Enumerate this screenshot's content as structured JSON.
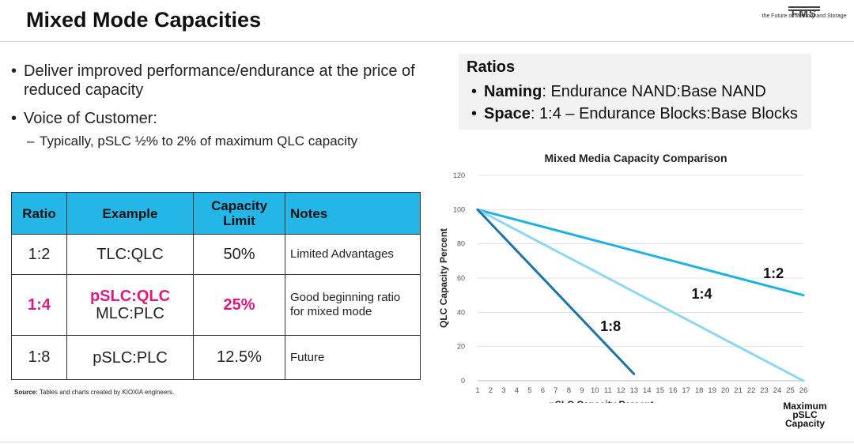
{
  "header": {
    "title": "Mixed Mode Capacities",
    "logo_mark": "FMS",
    "logo_tagline": "the Future of Memory and Storage"
  },
  "bullets": {
    "items": [
      "Deliver improved performance/endurance at the price of reduced capacity",
      "Voice of Customer:"
    ],
    "sub_items": [
      "Typically, pSLC ½% to 2% of maximum QLC capacity"
    ]
  },
  "ratios": {
    "title": "Ratios",
    "items": [
      {
        "term": "Naming",
        "text": ": Endurance NAND:Base NAND"
      },
      {
        "term": "Space",
        "text": ": 1:4 – Endurance Blocks:Base Blocks"
      }
    ]
  },
  "table": {
    "headers": [
      "Ratio",
      "Example",
      "Capacity Limit",
      "Notes"
    ],
    "rows": [
      {
        "ratio": "1:2",
        "example": [
          "TLC:QLC"
        ],
        "capacity": "50%",
        "notes": "Limited Advantages"
      },
      {
        "ratio": "1:4",
        "example": [
          "pSLC:QLC",
          "MLC:PLC"
        ],
        "capacity": "25%",
        "notes": "Good beginning ratio for mixed mode"
      },
      {
        "ratio": "1:8",
        "example": [
          "pSLC:PLC"
        ],
        "capacity": "12.5%",
        "notes": "Future"
      }
    ],
    "highlight_color": "#d81b7d",
    "header_color": "#25b6e8"
  },
  "source": {
    "label": "Source:",
    "text": " Tables and charts created by KIOXIA engineers."
  },
  "chart_data": {
    "type": "line",
    "title": "Mixed Media Capacity Comparison",
    "xlabel": "pSLC Capacity Percent",
    "ylabel": "QLC Capacity Percent",
    "x_ticks": [
      1,
      2,
      3,
      4,
      5,
      6,
      7,
      8,
      9,
      10,
      11,
      12,
      13,
      14,
      15,
      16,
      17,
      18,
      19,
      20,
      21,
      22,
      23,
      24,
      25,
      26
    ],
    "y_ticks": [
      0,
      20,
      40,
      60,
      80,
      100,
      120
    ],
    "xlim": [
      1,
      26
    ],
    "ylim": [
      0,
      120
    ],
    "grid": true,
    "extra_label": "Maximum pSLC Capacity",
    "series": [
      {
        "name": "1:2",
        "color": "#1fb1e3",
        "x": [
          1,
          26
        ],
        "y": [
          100,
          50
        ]
      },
      {
        "name": "1:4",
        "color": "#8fd6f2",
        "x": [
          1,
          26
        ],
        "y": [
          100,
          0
        ]
      },
      {
        "name": "1:8",
        "color": "#1c75a8",
        "x": [
          1,
          13
        ],
        "y": [
          100,
          4
        ]
      }
    ],
    "annotations": [
      {
        "text": "1:2",
        "x": 23.7,
        "y": 60
      },
      {
        "text": "1:4",
        "x": 18.2,
        "y": 48
      },
      {
        "text": "1:8",
        "x": 11.2,
        "y": 29
      }
    ]
  }
}
